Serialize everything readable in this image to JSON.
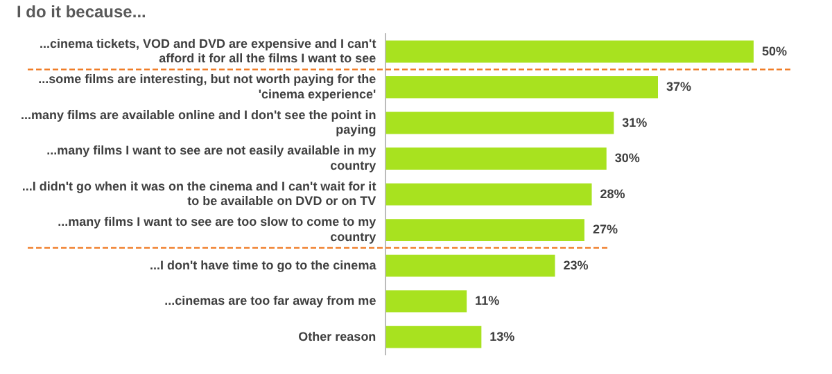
{
  "chart_data": {
    "type": "bar",
    "orientation": "horizontal",
    "title": "I do it because...",
    "categories": [
      "...cinema tickets, VOD and DVD are expensive and I can't afford it for all the films I want to see",
      "...some films are interesting, but not worth paying for the 'cinema experience'",
      "...many films are available online and I don't see the point in paying",
      "...many films I want to see are not easily available in my country",
      "...I didn't go when it was on the cinema and I can't wait for it to be available on DVD or on TV",
      "...many films I want to see are too slow to come to my country",
      "...I don't have time to go to the cinema",
      "...cinemas are too far away from me",
      "Other reason"
    ],
    "values": [
      50,
      37,
      31,
      30,
      28,
      27,
      23,
      11,
      13
    ],
    "value_labels": [
      "50%",
      "37%",
      "31%",
      "30%",
      "28%",
      "27%",
      "23%",
      "11%",
      "13%"
    ],
    "color": "#a8e21f",
    "xlim": [
      0,
      55
    ],
    "tick_labels": "y",
    "grid": false,
    "legend": false
  }
}
